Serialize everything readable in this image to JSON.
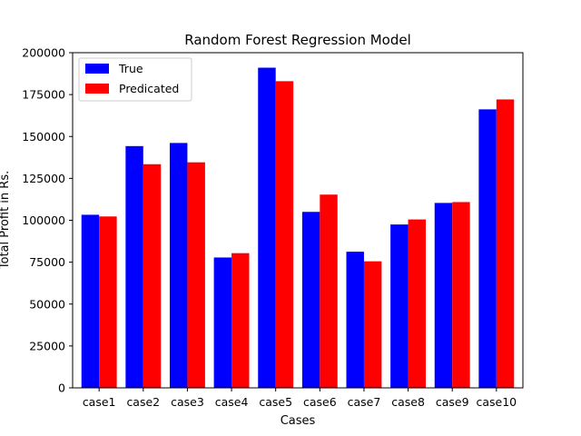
{
  "chart_data": {
    "type": "bar",
    "title": "Random Forest Regression Model",
    "xlabel": "Cases",
    "ylabel": "Total Profit in Rs.",
    "categories": [
      "case1",
      "case2",
      "case3",
      "case4",
      "case5",
      "case6",
      "case7",
      "case8",
      "case9",
      "case10"
    ],
    "series": [
      {
        "name": "True",
        "color": "#0000ff",
        "values": [
          103282,
          144259,
          146122,
          77798,
          191050,
          105008,
          81229,
          97483,
          110352,
          166188
        ]
      },
      {
        "name": "Predicated",
        "color": "#ff0000",
        "values": [
          102284,
          133447,
          134580,
          80366,
          182996,
          115316,
          75523,
          100486,
          110864,
          172101
        ]
      }
    ],
    "ylim": [
      0,
      200000
    ],
    "yticks": [
      "0",
      "25000",
      "50000",
      "75000",
      "100000",
      "125000",
      "150000",
      "175000",
      "200000"
    ],
    "grid": false,
    "legend_position": "top-left"
  }
}
